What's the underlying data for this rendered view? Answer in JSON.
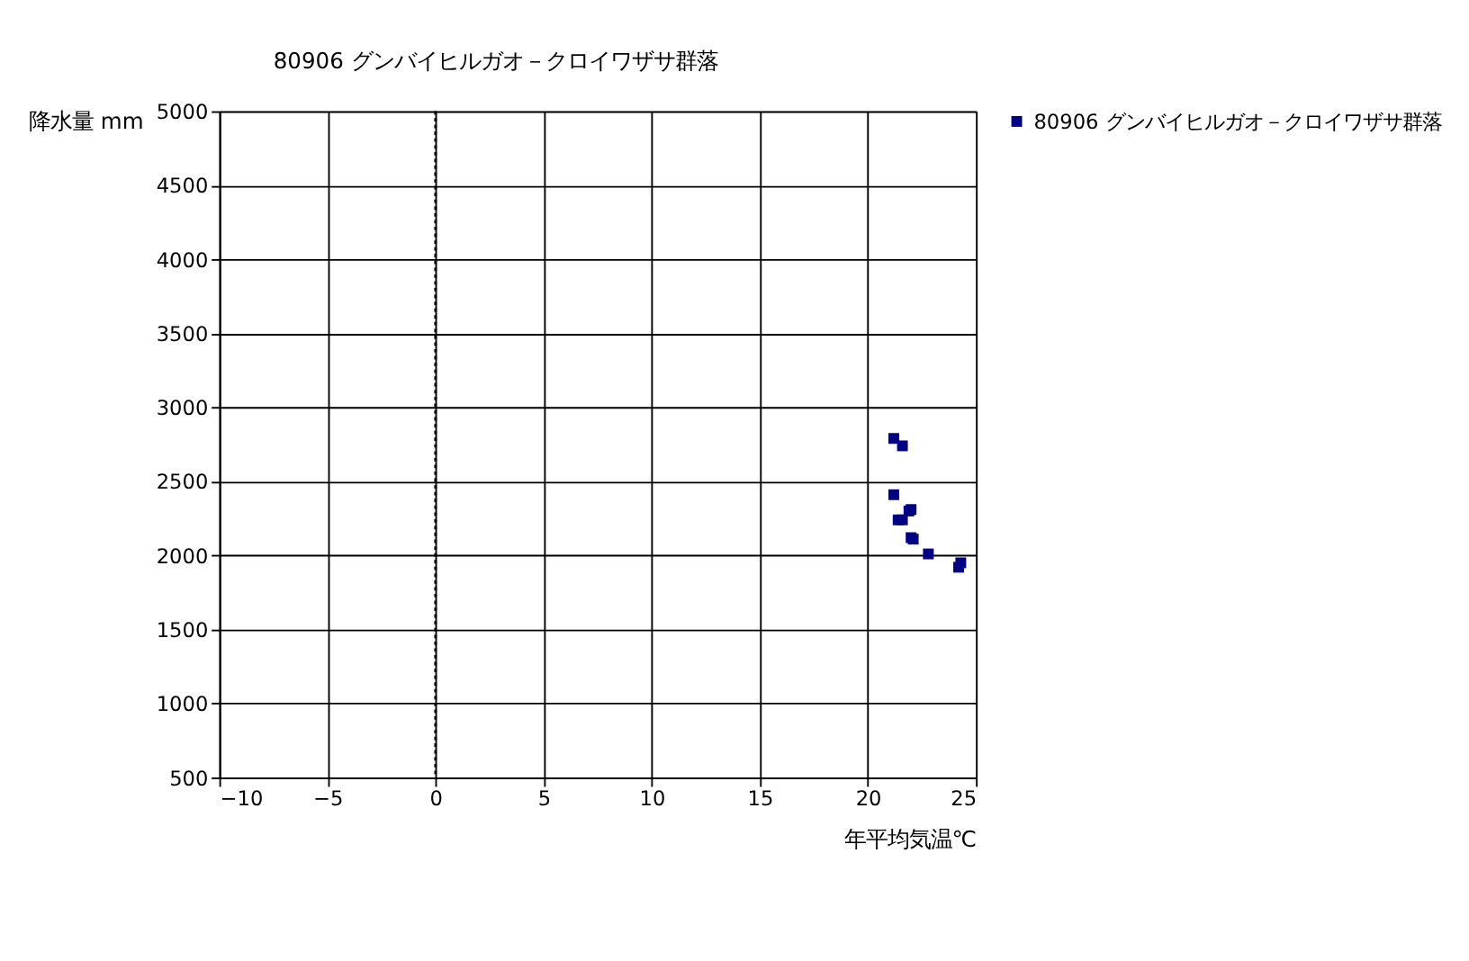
{
  "chart_data": {
    "type": "scatter",
    "title": "80906 グンバイヒルガオ－クロイワザサ群落",
    "xlabel": "年平均気温℃",
    "ylabel": "降水量 mm",
    "series": [
      {
        "name": "80906 グンバイヒルガオ－クロイワザサ群落",
        "color": "#000080",
        "x": [
          21.2,
          21.6,
          21.2,
          22.0,
          21.9,
          21.6,
          21.4,
          22.0,
          22.1,
          22.8,
          24.3,
          24.2
        ],
        "values": [
          2790,
          2740,
          2410,
          2310,
          2300,
          2240,
          2240,
          2120,
          2110,
          2010,
          1950,
          1920
        ]
      }
    ],
    "xlim": [
      -10,
      25
    ],
    "xticks": [
      -10,
      -5,
      0,
      5,
      10,
      15,
      20,
      25
    ],
    "ylim": [
      500,
      5000
    ],
    "yticks": [
      500,
      1000,
      1500,
      2000,
      2500,
      3000,
      3500,
      4000,
      4500,
      5000
    ],
    "grid": true,
    "legend": "right",
    "marker": "square",
    "ref_lines": [
      {
        "axis": "x",
        "value": 0,
        "line_style": "dotted"
      }
    ]
  }
}
